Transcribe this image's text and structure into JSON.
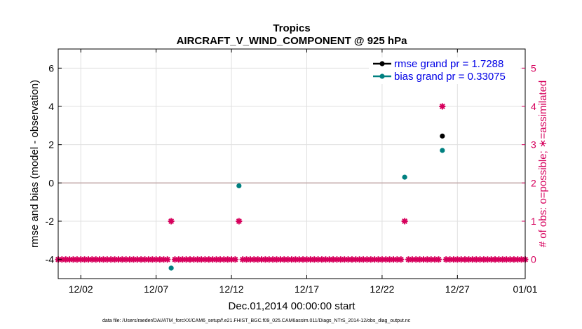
{
  "chart_data": {
    "type": "scatter",
    "title": "Tropics",
    "subtitle": "AIRCRAFT_V_WIND_COMPONENT @ 925 hPa",
    "xlabel": "Dec.01,2014 00:00:00 start",
    "ylabel": "rmse and bias (model - observation)",
    "y2label": "# of obs: o=possible; ∗=assimilated",
    "footnote": "data file: /Users/raeder/DAI/ATM_forcXX/CAM6_setup/f.e21.FHIST_BGC.f09_025.CAM6assim.011/Diags_NTrS_2014-12/obs_diag_output.nc",
    "xlim": [
      0.5,
      31.5
    ],
    "ylim": [
      -5,
      7
    ],
    "y2lim": [
      -0.5,
      5.5
    ],
    "x_ticks": [
      2,
      7,
      12,
      17,
      22,
      27,
      32
    ],
    "x_tick_labels": [
      "12/02",
      "12/07",
      "12/12",
      "12/17",
      "12/22",
      "12/27",
      "01/01"
    ],
    "y_ticks": [
      -4,
      -2,
      0,
      2,
      4,
      6
    ],
    "y_tick_labels": [
      "-4",
      "-2",
      "0",
      "2",
      "4",
      "6"
    ],
    "y2_ticks": [
      0,
      1,
      2,
      3,
      4,
      5
    ],
    "y2_tick_labels": [
      "0",
      "1",
      "2",
      "3",
      "4",
      "5"
    ],
    "grid": true,
    "legend_position": "top-right",
    "colors": {
      "rmse": "#000000",
      "bias": "#008080",
      "obs": "#d6005c",
      "zero_line": "#bfa4a4",
      "grid": "#e0e0e0",
      "legend_text": "#0000e6"
    },
    "series": [
      {
        "name": "rmse grand pr = 1.7288",
        "axis": "left",
        "x": [
          26.0
        ],
        "y": [
          2.45
        ]
      },
      {
        "name": "bias grand pr = 0.33075",
        "axis": "left",
        "x": [
          8.0,
          12.5,
          23.5,
          26.0
        ],
        "y": [
          -4.45,
          -0.15,
          0.3,
          1.7
        ]
      },
      {
        "axis": "right",
        "x_start": 0.5,
        "x_step": 0.25,
        "count": 125,
        "y_default": 0,
        "overrides": [
          {
            "x": 8.0,
            "y": 1
          },
          {
            "x": 12.5,
            "y": 1
          },
          {
            "x": 23.5,
            "y": 1
          },
          {
            "x": 26.0,
            "y": 4
          }
        ]
      }
    ]
  }
}
